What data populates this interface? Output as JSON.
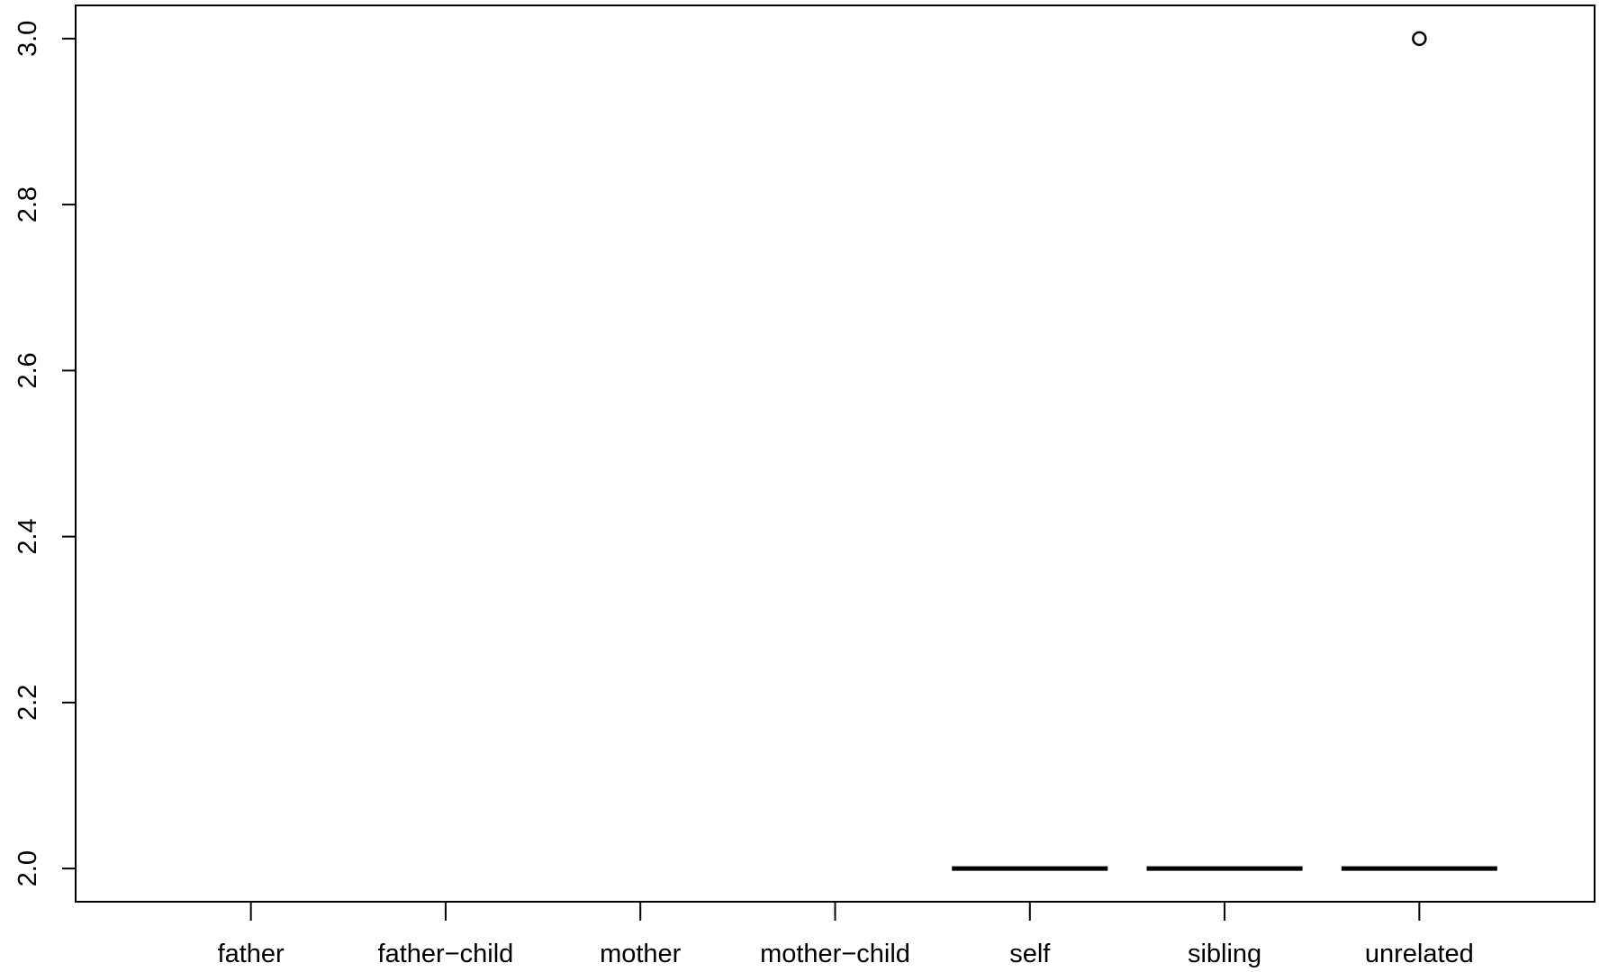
{
  "chart_data": {
    "type": "box",
    "categories": [
      "father",
      "father−child",
      "mother",
      "mother−child",
      "self",
      "sibling",
      "unrelated"
    ],
    "medians": [
      null,
      null,
      null,
      null,
      2.0,
      2.0,
      2.0
    ],
    "outliers": [
      {
        "category": "unrelated",
        "value": 3.0
      }
    ],
    "ylim": [
      1.96,
      3.04
    ],
    "yticks": [
      2.0,
      2.2,
      2.4,
      2.6,
      2.8,
      3.0
    ],
    "ytick_labels": [
      "2.0",
      "2.2",
      "2.4",
      "2.6",
      "2.8",
      "3.0"
    ],
    "grid": false,
    "colors": {
      "stroke": "#000000",
      "background": "#ffffff"
    }
  }
}
